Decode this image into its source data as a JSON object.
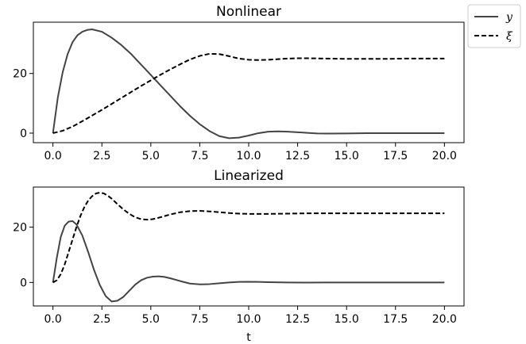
{
  "legend": {
    "position": "top-right, outside plots",
    "entries": [
      {
        "label": "y",
        "style": "solid",
        "color": "#444444"
      },
      {
        "label": "ξ",
        "style": "dashed",
        "color": "#000000"
      }
    ]
  },
  "chart_data": [
    {
      "type": "line",
      "title": "Nonlinear",
      "xlabel": "",
      "ylabel": "",
      "xlim": [
        -1.0,
        21.0
      ],
      "ylim": [
        -3.2,
        37.2
      ],
      "xticks": [
        0.0,
        2.5,
        5.0,
        7.5,
        10.0,
        12.5,
        15.0,
        17.5,
        20.0
      ],
      "xtick_labels": [
        "0.0",
        "2.5",
        "5.0",
        "7.5",
        "10.0",
        "12.5",
        "15.0",
        "17.5",
        "20.0"
      ],
      "yticks": [
        0,
        20
      ],
      "ytick_labels": [
        "0",
        "20"
      ],
      "grid": false,
      "series": [
        {
          "name": "y",
          "style": "solid",
          "color": "#444444",
          "x": [
            0,
            0.25,
            0.5,
            0.75,
            1.0,
            1.25,
            1.5,
            1.75,
            2.0,
            2.5,
            3.0,
            3.5,
            4.0,
            4.5,
            5.0,
            5.5,
            6.0,
            6.5,
            7.0,
            7.5,
            8.0,
            8.5,
            9.0,
            9.5,
            10.0,
            10.5,
            11.0,
            11.5,
            12.0,
            12.5,
            13.0,
            13.5,
            14.0,
            15.0,
            16.0,
            17.0,
            18.0,
            19.0,
            20.0
          ],
          "y": [
            0,
            12.0,
            20.5,
            26.5,
            30.5,
            32.8,
            34.0,
            34.6,
            34.8,
            34.0,
            32.0,
            29.5,
            26.5,
            23.0,
            19.5,
            16.0,
            12.5,
            9.0,
            5.8,
            3.0,
            0.7,
            -1.0,
            -1.7,
            -1.5,
            -0.8,
            0.0,
            0.5,
            0.6,
            0.5,
            0.3,
            0.1,
            -0.1,
            -0.15,
            -0.1,
            0.0,
            0.0,
            0.0,
            0.0,
            0.0
          ]
        },
        {
          "name": "ξ",
          "style": "dashed",
          "color": "#000000",
          "x": [
            0,
            0.5,
            1.0,
            1.5,
            2.0,
            2.5,
            3.0,
            3.5,
            4.0,
            4.5,
            5.0,
            5.5,
            6.0,
            6.5,
            7.0,
            7.5,
            8.0,
            8.5,
            9.0,
            9.5,
            10.0,
            10.5,
            11.0,
            11.5,
            12.0,
            12.5,
            13.0,
            14.0,
            15.0,
            16.0,
            17.0,
            18.0,
            19.0,
            20.0
          ],
          "y": [
            0,
            0.8,
            2.2,
            4.0,
            5.9,
            7.8,
            9.8,
            11.8,
            13.8,
            15.8,
            17.7,
            19.6,
            21.4,
            23.1,
            24.7,
            25.9,
            26.6,
            26.5,
            25.8,
            25.0,
            24.6,
            24.5,
            24.6,
            24.8,
            25.0,
            25.1,
            25.1,
            25.0,
            24.9,
            24.9,
            24.9,
            25.0,
            25.0,
            25.0
          ]
        }
      ]
    },
    {
      "type": "line",
      "title": "Linearized",
      "xlabel": "t",
      "ylabel": "",
      "xlim": [
        -1.0,
        21.0
      ],
      "ylim": [
        -8.5,
        34.5
      ],
      "xticks": [
        0.0,
        2.5,
        5.0,
        7.5,
        10.0,
        12.5,
        15.0,
        17.5,
        20.0
      ],
      "xtick_labels": [
        "0.0",
        "2.5",
        "5.0",
        "7.5",
        "10.0",
        "12.5",
        "15.0",
        "17.5",
        "20.0"
      ],
      "yticks": [
        0,
        20
      ],
      "ytick_labels": [
        "0",
        "20"
      ],
      "grid": false,
      "series": [
        {
          "name": "y",
          "style": "solid",
          "color": "#444444",
          "x": [
            0,
            0.2,
            0.4,
            0.6,
            0.8,
            1.0,
            1.2,
            1.5,
            1.8,
            2.1,
            2.4,
            2.7,
            3.0,
            3.3,
            3.6,
            3.9,
            4.2,
            4.5,
            4.8,
            5.1,
            5.4,
            5.7,
            6.0,
            6.5,
            7.0,
            7.5,
            8.0,
            8.5,
            9.0,
            9.5,
            10.0,
            10.5,
            11.0,
            12.0,
            13.0,
            14.0,
            16.0,
            18.0,
            20.0
          ],
          "y": [
            0,
            9.0,
            16.5,
            20.5,
            22.0,
            22.2,
            21.0,
            17.0,
            11.0,
            4.5,
            -1.0,
            -5.0,
            -6.9,
            -6.6,
            -5.2,
            -3.0,
            -0.8,
            0.8,
            1.7,
            2.1,
            2.2,
            2.0,
            1.5,
            0.5,
            -0.4,
            -0.7,
            -0.6,
            -0.3,
            0.0,
            0.2,
            0.25,
            0.2,
            0.1,
            0.0,
            -0.05,
            0.0,
            0.0,
            0.0,
            0.0
          ]
        },
        {
          "name": "ξ",
          "style": "dashed",
          "color": "#000000",
          "x": [
            0,
            0.2,
            0.4,
            0.6,
            0.8,
            1.0,
            1.2,
            1.4,
            1.6,
            1.8,
            2.0,
            2.2,
            2.4,
            2.6,
            2.8,
            3.0,
            3.3,
            3.6,
            3.9,
            4.2,
            4.5,
            4.8,
            5.1,
            5.4,
            5.7,
            6.0,
            6.5,
            7.0,
            7.5,
            8.0,
            8.5,
            9.0,
            9.5,
            10.0,
            11.0,
            12.0,
            13.0,
            14.0,
            16.0,
            18.0,
            20.0
          ],
          "y": [
            0,
            0.8,
            3.0,
            6.5,
            11.0,
            15.5,
            20.0,
            24.0,
            27.2,
            29.6,
            31.2,
            32.2,
            32.5,
            32.2,
            31.4,
            30.3,
            28.3,
            26.4,
            24.8,
            23.6,
            22.9,
            22.7,
            22.9,
            23.4,
            24.0,
            24.6,
            25.4,
            25.8,
            25.9,
            25.7,
            25.4,
            25.1,
            24.9,
            24.8,
            24.8,
            24.9,
            25.0,
            25.0,
            25.0,
            25.0,
            25.0
          ]
        }
      ]
    }
  ]
}
